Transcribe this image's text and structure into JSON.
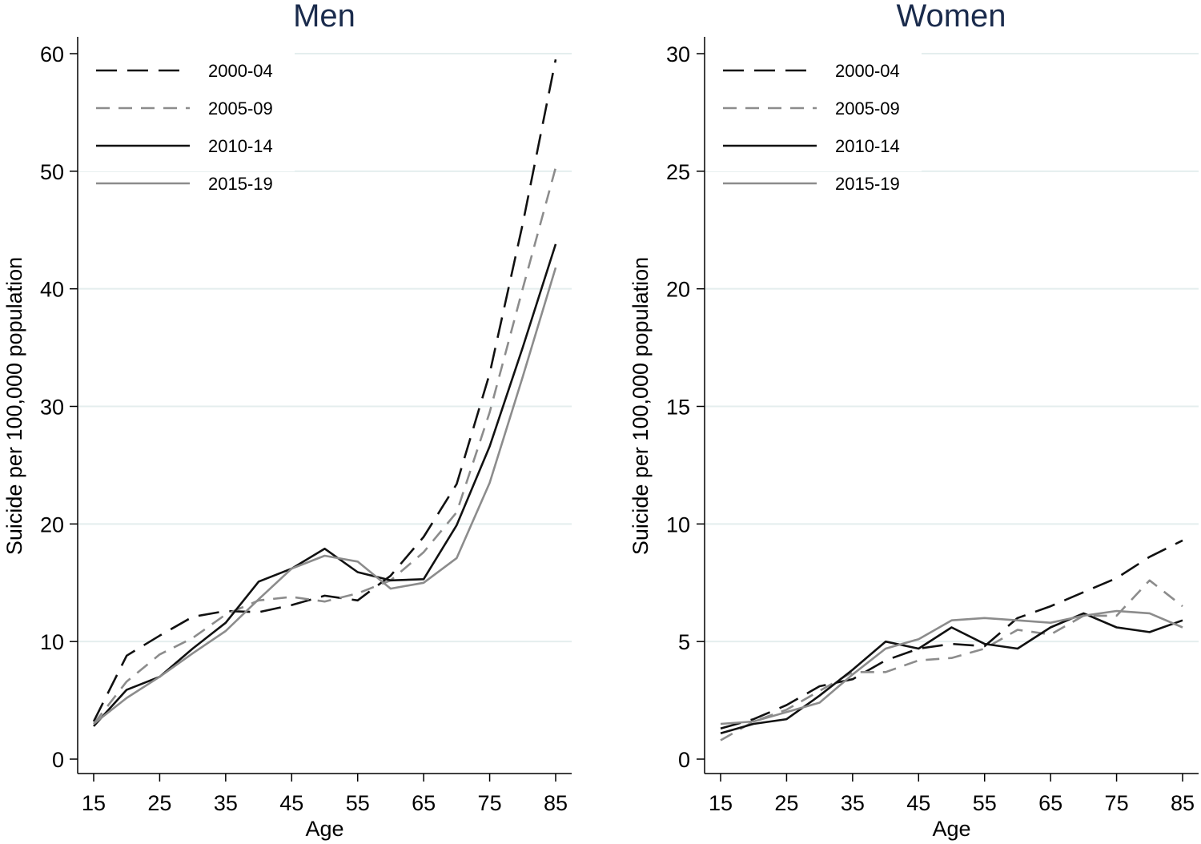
{
  "colors": {
    "background": "#ffffff",
    "title": "#1a2b4c",
    "grid": "#e4eeee",
    "axis": "#000000"
  },
  "chart_data": [
    {
      "type": "line",
      "title": "Men",
      "xlabel": "Age",
      "ylabel": "Suicide per 100,000 population",
      "xlim": [
        15,
        85
      ],
      "ylim": [
        0,
        60
      ],
      "xticks": [
        "15",
        "25",
        "35",
        "45",
        "55",
        "65",
        "75",
        "85"
      ],
      "yticks": [
        "0",
        "10",
        "20",
        "30",
        "40",
        "50",
        "60"
      ],
      "grid": true,
      "legend_position": "top-left",
      "x": [
        15,
        20,
        25,
        30,
        35,
        40,
        45,
        50,
        55,
        60,
        65,
        70,
        75,
        80,
        85
      ],
      "series": [
        {
          "name": "2000-04",
          "color": "#111111",
          "dash": "dashed-long",
          "values": [
            3.2,
            8.8,
            10.5,
            12.1,
            12.6,
            12.5,
            13.1,
            13.9,
            13.5,
            15.6,
            18.9,
            23.4,
            32.8,
            45.5,
            59.5
          ]
        },
        {
          "name": "2005-09",
          "color": "#8c8c8c",
          "dash": "dashed",
          "values": [
            3.0,
            6.6,
            8.9,
            10.3,
            12.3,
            13.5,
            13.8,
            13.4,
            14.1,
            15.2,
            17.6,
            21.0,
            29.5,
            40.0,
            50.3
          ]
        },
        {
          "name": "2010-14",
          "color": "#111111",
          "dash": "solid",
          "values": [
            2.8,
            5.9,
            7.0,
            9.4,
            11.6,
            15.1,
            16.2,
            17.9,
            15.9,
            15.2,
            15.3,
            19.9,
            26.6,
            35.0,
            43.8
          ]
        },
        {
          "name": "2015-19",
          "color": "#8c8c8c",
          "dash": "solid",
          "values": [
            3.0,
            5.2,
            7.0,
            9.0,
            10.9,
            13.6,
            16.2,
            17.3,
            16.8,
            14.5,
            15.0,
            17.1,
            23.5,
            32.5,
            41.8
          ]
        }
      ]
    },
    {
      "type": "line",
      "title": "Women",
      "xlabel": "Age",
      "ylabel": "Suicide per 100,000 population",
      "xlim": [
        15,
        85
      ],
      "ylim": [
        0,
        30
      ],
      "xticks": [
        "15",
        "25",
        "35",
        "45",
        "55",
        "65",
        "75",
        "85"
      ],
      "yticks": [
        "0",
        "5",
        "10",
        "15",
        "20",
        "25",
        "30"
      ],
      "grid": true,
      "legend_position": "top-left",
      "x": [
        15,
        20,
        25,
        30,
        35,
        40,
        45,
        50,
        55,
        60,
        65,
        70,
        75,
        80,
        85
      ],
      "series": [
        {
          "name": "2000-04",
          "color": "#111111",
          "dash": "dashed-long",
          "values": [
            1.3,
            1.7,
            2.3,
            3.1,
            3.4,
            4.2,
            4.7,
            4.9,
            4.8,
            6.0,
            6.5,
            7.1,
            7.7,
            8.6,
            9.3
          ]
        },
        {
          "name": "2005-09",
          "color": "#8c8c8c",
          "dash": "dashed",
          "values": [
            0.8,
            1.6,
            2.1,
            2.9,
            3.7,
            3.7,
            4.2,
            4.3,
            4.7,
            5.5,
            5.3,
            6.1,
            6.1,
            7.6,
            6.5
          ]
        },
        {
          "name": "2010-14",
          "color": "#111111",
          "dash": "solid",
          "values": [
            1.1,
            1.5,
            1.7,
            2.7,
            3.8,
            5.0,
            4.7,
            5.6,
            4.9,
            4.7,
            5.6,
            6.2,
            5.6,
            5.4,
            5.9
          ]
        },
        {
          "name": "2015-19",
          "color": "#8c8c8c",
          "dash": "solid",
          "values": [
            1.5,
            1.6,
            2.0,
            2.4,
            3.6,
            4.7,
            5.1,
            5.9,
            6.0,
            5.9,
            5.8,
            6.1,
            6.3,
            6.2,
            5.6
          ]
        }
      ]
    }
  ]
}
